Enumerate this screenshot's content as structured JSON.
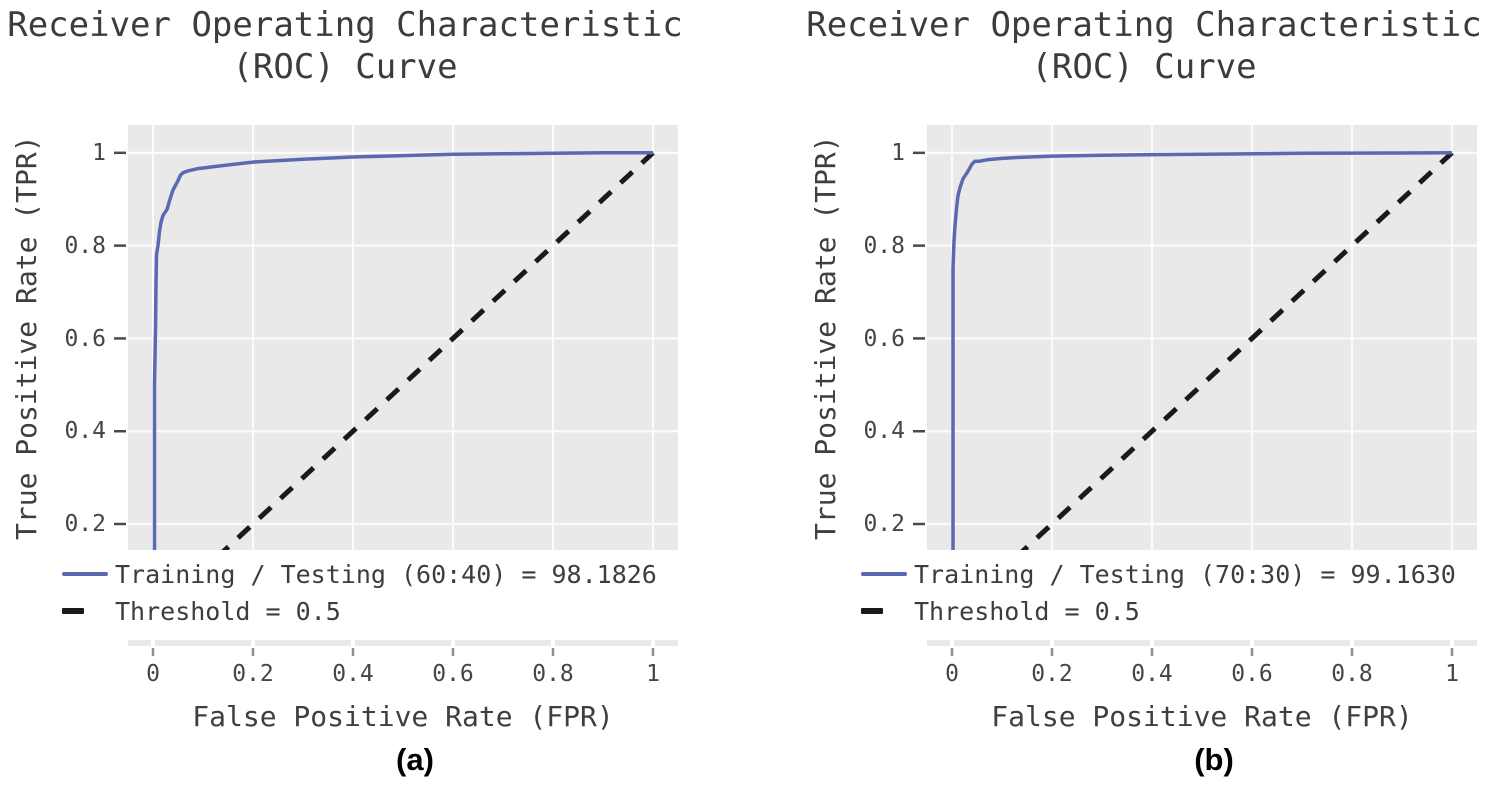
{
  "figure": {
    "background": "#ffffff",
    "colors": {
      "plot_bg": "#e9e9e9",
      "grid": "#fbfbfb",
      "curve": "#5b69b3",
      "threshold": "#1a1a1a",
      "text": "#3f3f3f",
      "tick_mark": "#8f8f8f"
    },
    "panels": [
      {
        "title_line1": "Receiver Operating Characteristic",
        "title_line2": "(ROC) Curve",
        "ylabel": "True Positive Rate (TPR)",
        "xlabel": "False Positive Rate (FPR)",
        "panel_label": "(a)",
        "y_ticks": [
          "1",
          "0.8",
          "0.6",
          "0.4",
          "0.2"
        ],
        "x_ticks": [
          "0",
          "0.2",
          "0.4",
          "0.6",
          "0.8",
          "1"
        ],
        "legend": [
          {
            "label": "Training / Testing (60:40) = 98.1826",
            "style": "solid"
          },
          {
            "label": "Threshold = 0.5",
            "style": "dashed"
          }
        ]
      },
      {
        "title_line1": "Receiver Operating Characteristic",
        "title_line2": "(ROC) Curve",
        "ylabel": "True Positive Rate (TPR)",
        "xlabel": "False Positive Rate (FPR)",
        "panel_label": "(b)",
        "y_ticks": [
          "1",
          "0.8",
          "0.6",
          "0.4",
          "0.2"
        ],
        "x_ticks": [
          "0",
          "0.2",
          "0.4",
          "0.6",
          "0.8",
          "1"
        ],
        "legend": [
          {
            "label": "Training / Testing (70:30) = 99.1630",
            "style": "solid"
          },
          {
            "label": "Threshold = 0.5",
            "style": "dashed"
          }
        ]
      }
    ]
  },
  "chart_data": [
    {
      "type": "line",
      "title": "Receiver Operating Characteristic (ROC) Curve",
      "xlabel": "False Positive Rate (FPR)",
      "ylabel": "True Positive Rate (TPR)",
      "xlim": [
        -0.05,
        1.05
      ],
      "ylim": [
        0.144,
        1.06
      ],
      "x_tick_values": [
        0,
        0.2,
        0.4,
        0.6,
        0.8,
        1
      ],
      "y_tick_values": [
        1,
        0.8,
        0.6,
        0.4,
        0.2
      ],
      "grid": true,
      "legend_position": "below",
      "series": [
        {
          "name": "Training / Testing (60:40) = 98.1826",
          "auc": 98.1826,
          "style": "solid",
          "points": [
            [
              0.003,
              0
            ],
            [
              0.003,
              0.5
            ],
            [
              0.005,
              0.62
            ],
            [
              0.006,
              0.72
            ],
            [
              0.007,
              0.78
            ],
            [
              0.01,
              0.8
            ],
            [
              0.013,
              0.83
            ],
            [
              0.016,
              0.85
            ],
            [
              0.02,
              0.865
            ],
            [
              0.028,
              0.878
            ],
            [
              0.034,
              0.9
            ],
            [
              0.04,
              0.92
            ],
            [
              0.046,
              0.932
            ],
            [
              0.05,
              0.94
            ],
            [
              0.055,
              0.952
            ],
            [
              0.06,
              0.957
            ],
            [
              0.07,
              0.961
            ],
            [
              0.09,
              0.966
            ],
            [
              0.12,
              0.97
            ],
            [
              0.16,
              0.975
            ],
            [
              0.2,
              0.98
            ],
            [
              0.3,
              0.986
            ],
            [
              0.4,
              0.991
            ],
            [
              0.5,
              0.994
            ],
            [
              0.6,
              0.997
            ],
            [
              0.7,
              0.998
            ],
            [
              0.8,
              0.999
            ],
            [
              0.9,
              1.0
            ],
            [
              1.0,
              1.0
            ]
          ]
        },
        {
          "name": "Threshold = 0.5",
          "threshold": 0.5,
          "style": "dashed",
          "points": [
            [
              0,
              0
            ],
            [
              1,
              1
            ]
          ]
        }
      ]
    },
    {
      "type": "line",
      "title": "Receiver Operating Characteristic (ROC) Curve",
      "xlabel": "False Positive Rate (FPR)",
      "ylabel": "True Positive Rate (TPR)",
      "xlim": [
        -0.05,
        1.05
      ],
      "ylim": [
        0.144,
        1.06
      ],
      "x_tick_values": [
        0,
        0.2,
        0.4,
        0.6,
        0.8,
        1
      ],
      "y_tick_values": [
        1,
        0.8,
        0.6,
        0.4,
        0.2
      ],
      "grid": true,
      "legend_position": "below",
      "series": [
        {
          "name": "Training / Testing (70:30) = 99.1630",
          "auc": 99.163,
          "style": "solid",
          "points": [
            [
              0.002,
              0
            ],
            [
              0.002,
              0.75
            ],
            [
              0.004,
              0.81
            ],
            [
              0.006,
              0.843
            ],
            [
              0.009,
              0.88
            ],
            [
              0.012,
              0.908
            ],
            [
              0.016,
              0.925
            ],
            [
              0.022,
              0.944
            ],
            [
              0.03,
              0.957
            ],
            [
              0.036,
              0.968
            ],
            [
              0.04,
              0.976
            ],
            [
              0.046,
              0.982
            ],
            [
              0.055,
              0.982
            ],
            [
              0.07,
              0.985
            ],
            [
              0.1,
              0.988
            ],
            [
              0.13,
              0.99
            ],
            [
              0.2,
              0.993
            ],
            [
              0.3,
              0.995
            ],
            [
              0.5,
              0.997
            ],
            [
              0.7,
              0.999
            ],
            [
              1.0,
              1.0
            ]
          ]
        },
        {
          "name": "Threshold = 0.5",
          "threshold": 0.5,
          "style": "dashed",
          "points": [
            [
              0,
              0
            ],
            [
              1,
              1
            ]
          ]
        }
      ]
    }
  ]
}
